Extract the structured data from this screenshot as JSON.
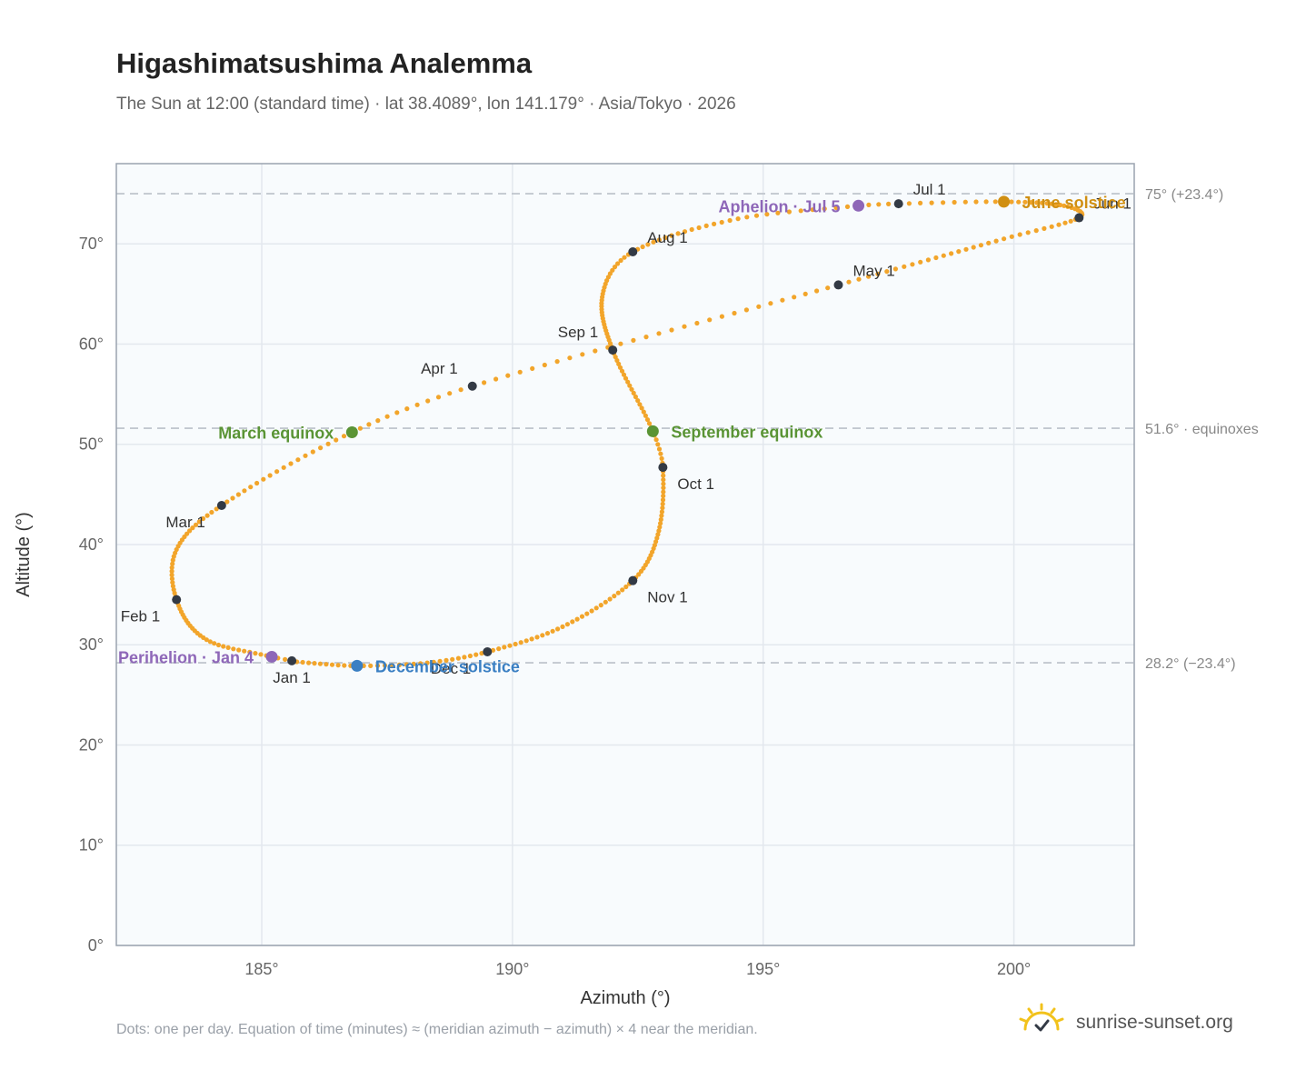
{
  "header": {
    "title": "Higashimatsushima Analemma",
    "subtitle": "The Sun at 12:00 (standard time) · lat 38.4089°, lon 141.179° · Asia/Tokyo · 2026"
  },
  "footer": {
    "note": "Dots: one per day. Equation of time (minutes) ≈ (meridian azimuth − azimuth) × 4 near the meridian.",
    "brand": "sunrise-sunset.org",
    "brand_icon": "sun-icon"
  },
  "colors": {
    "path": "#f2a52b",
    "month_dot": "#333a45",
    "equinox": "#5a9435",
    "june_solstice": "#d08f12",
    "december_solstice": "#3a7fc3",
    "apsis": "#8e67b8",
    "refline": "#c2c8cf",
    "plot_bg": "#f8fbfd",
    "plot_border": "#9aa3af",
    "grid": "#e3e8ee"
  },
  "chart_data": {
    "type": "scatter",
    "xlabel": "Azimuth (°)",
    "ylabel": "Altitude (°)",
    "xlim": [
      182.1,
      202.4
    ],
    "ylim": [
      0,
      78
    ],
    "xticks": [
      {
        "v": 185,
        "label": "185°"
      },
      {
        "v": 190,
        "label": "190°"
      },
      {
        "v": 195,
        "label": "195°"
      },
      {
        "v": 200,
        "label": "200°"
      }
    ],
    "yticks": [
      {
        "v": 0,
        "label": "0°"
      },
      {
        "v": 10,
        "label": "10°"
      },
      {
        "v": 20,
        "label": "20°"
      },
      {
        "v": 30,
        "label": "30°"
      },
      {
        "v": 40,
        "label": "40°"
      },
      {
        "v": 50,
        "label": "50°"
      },
      {
        "v": 60,
        "label": "60°"
      },
      {
        "v": 70,
        "label": "70°"
      }
    ],
    "grid": true,
    "series": [
      {
        "points": [
          {
            "doy": 0,
            "az": 185.6,
            "alt": 28.4
          },
          {
            "doy": 3,
            "az": 185.2,
            "alt": 28.8
          },
          {
            "doy": 16,
            "az": 183.9,
            "alt": 30.5
          },
          {
            "doy": 31,
            "az": 183.3,
            "alt": 34.5
          },
          {
            "doy": 45,
            "az": 183.3,
            "alt": 39.5
          },
          {
            "doy": 59,
            "az": 184.2,
            "alt": 43.9
          },
          {
            "doy": 78,
            "az": 186.8,
            "alt": 51.2
          },
          {
            "doy": 90,
            "az": 189.2,
            "alt": 55.8
          },
          {
            "doy": 120,
            "az": 196.5,
            "alt": 65.9
          },
          {
            "doy": 140,
            "az": 199.8,
            "alt": 70.5
          },
          {
            "doy": 151,
            "az": 201.3,
            "alt": 72.6
          },
          {
            "doy": 160,
            "az": 201.0,
            "alt": 73.8
          },
          {
            "doy": 171,
            "az": 199.8,
            "alt": 74.2
          },
          {
            "doy": 181,
            "az": 197.7,
            "alt": 74.0
          },
          {
            "doy": 185,
            "az": 196.9,
            "alt": 73.8
          },
          {
            "doy": 196,
            "az": 194.5,
            "alt": 72.5
          },
          {
            "doy": 212,
            "az": 192.4,
            "alt": 69.2
          },
          {
            "doy": 225,
            "az": 191.8,
            "alt": 65.0
          },
          {
            "doy": 243,
            "az": 192.0,
            "alt": 59.4
          },
          {
            "doy": 265,
            "az": 192.8,
            "alt": 51.3
          },
          {
            "doy": 273,
            "az": 193.0,
            "alt": 47.7
          },
          {
            "doy": 290,
            "az": 192.9,
            "alt": 41.0
          },
          {
            "doy": 304,
            "az": 192.4,
            "alt": 36.4
          },
          {
            "doy": 320,
            "az": 191.0,
            "alt": 31.8
          },
          {
            "doy": 334,
            "az": 189.5,
            "alt": 29.3
          },
          {
            "doy": 344,
            "az": 188.3,
            "alt": 28.2
          },
          {
            "doy": 354,
            "az": 186.9,
            "alt": 27.9
          },
          {
            "doy": 364,
            "az": 185.7,
            "alt": 28.3
          }
        ]
      }
    ],
    "month_markers": [
      {
        "label": "Jan 1",
        "az": 185.6,
        "alt": 28.4,
        "pos": "below"
      },
      {
        "label": "Feb 1",
        "az": 183.3,
        "alt": 34.5,
        "pos": "below-left"
      },
      {
        "label": "Mar 1",
        "az": 184.2,
        "alt": 43.9,
        "pos": "below-left"
      },
      {
        "label": "Apr 1",
        "az": 189.2,
        "alt": 55.8,
        "pos": "above-left"
      },
      {
        "label": "May 1",
        "az": 196.5,
        "alt": 65.9,
        "pos": "above-right"
      },
      {
        "label": "Jun 1",
        "az": 201.3,
        "alt": 72.6,
        "pos": "above-right"
      },
      {
        "label": "Jul 1",
        "az": 197.7,
        "alt": 74.0,
        "pos": "above-right"
      },
      {
        "label": "Aug 1",
        "az": 192.4,
        "alt": 69.2,
        "pos": "above-right"
      },
      {
        "label": "Sep 1",
        "az": 192.0,
        "alt": 59.4,
        "pos": "above-left"
      },
      {
        "label": "Oct 1",
        "az": 193.0,
        "alt": 47.7,
        "pos": "below-right"
      },
      {
        "label": "Nov 1",
        "az": 192.4,
        "alt": 36.4,
        "pos": "below-right"
      },
      {
        "label": "Dec 1",
        "az": 189.5,
        "alt": 29.3,
        "pos": "below-left"
      }
    ],
    "events": [
      {
        "label": "March equinox",
        "az": 186.8,
        "alt": 51.2,
        "color": "#5a9435",
        "side": "left"
      },
      {
        "label": "September equinox",
        "az": 192.8,
        "alt": 51.3,
        "color": "#5a9435",
        "side": "right"
      },
      {
        "label": "June solstice",
        "az": 199.8,
        "alt": 74.2,
        "color": "#d08f12",
        "side": "right"
      },
      {
        "label": "December solstice",
        "az": 186.9,
        "alt": 27.9,
        "color": "#3a7fc3",
        "side": "right"
      },
      {
        "label": "Perihelion · Jan 4",
        "az": 185.2,
        "alt": 28.8,
        "color": "#8e67b8",
        "side": "left"
      },
      {
        "label": "Aphelion · Jul 5",
        "az": 196.9,
        "alt": 73.8,
        "color": "#8e67b8",
        "side": "left"
      }
    ],
    "reference_lines": [
      {
        "alt": 75.0,
        "label": "75° (+23.4°)"
      },
      {
        "alt": 51.6,
        "label": "51.6° · equinoxes"
      },
      {
        "alt": 28.2,
        "label": "28.2° (−23.4°)"
      }
    ]
  }
}
